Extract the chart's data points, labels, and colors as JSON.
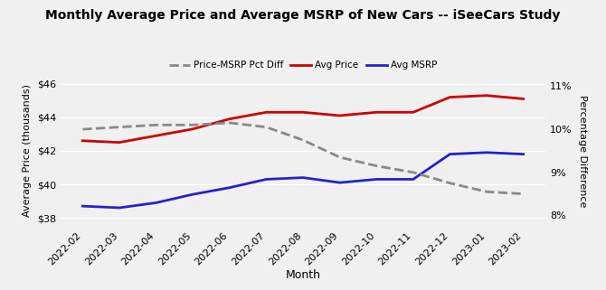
{
  "months": [
    "2022-02",
    "2022-03",
    "2022-04",
    "2022-05",
    "2022-06",
    "2022-07",
    "2022-08",
    "2022-09",
    "2022-10",
    "2022-11",
    "2022-12",
    "2023-01",
    "2023-02"
  ],
  "avg_price": [
    42.6,
    42.5,
    42.9,
    43.3,
    43.9,
    44.3,
    44.3,
    44.1,
    44.3,
    44.3,
    45.2,
    45.3,
    45.1
  ],
  "avg_msrp": [
    38.7,
    38.6,
    38.9,
    39.4,
    39.8,
    40.3,
    40.4,
    40.1,
    40.3,
    40.3,
    41.8,
    41.9,
    41.8
  ],
  "pct_diff": [
    10.0,
    10.05,
    10.1,
    10.1,
    10.15,
    10.05,
    9.75,
    9.35,
    9.15,
    9.0,
    8.75,
    8.55,
    8.5
  ],
  "title": "Monthly Average Price and Average MSRP of New Cars -- iSeeCars Study",
  "xlabel": "Month",
  "ylabel_left": "Average Price (thousands)",
  "ylabel_right": "Percentage Difference",
  "left_ylim": [
    37.5,
    46.5
  ],
  "right_ylim": [
    7.75,
    11.25
  ],
  "left_yticks": [
    38,
    40,
    42,
    44,
    46
  ],
  "right_yticks": [
    8,
    9,
    10,
    11
  ],
  "color_price": "#cc0000",
  "color_msrp": "#2222cc",
  "color_pct": "#888888",
  "bg_color": "#f0f0f0",
  "grid_color": "#ffffff",
  "legend_labels": [
    "Price-MSRP Pct Diff",
    "Avg Price",
    "Avg MSRP"
  ]
}
